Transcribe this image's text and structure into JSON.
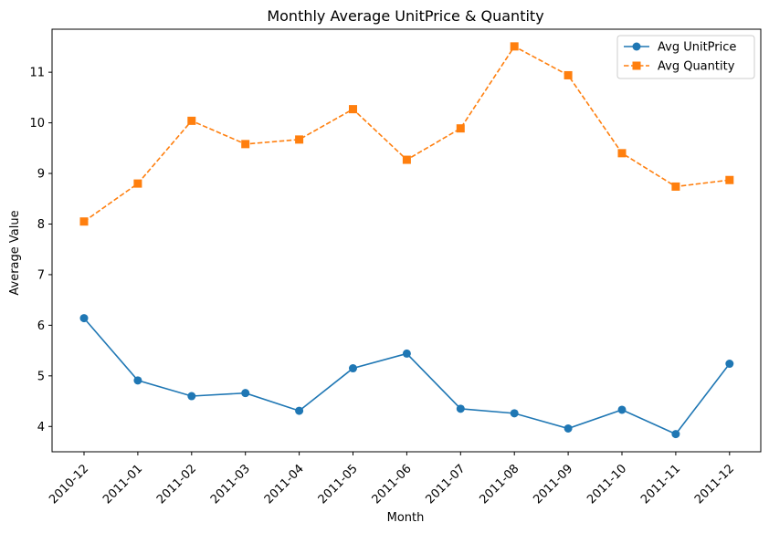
{
  "chart_data": {
    "type": "line",
    "title": "Monthly Average UnitPrice & Quantity",
    "xlabel": "Month",
    "ylabel": "Average Value",
    "categories": [
      "2010-12",
      "2011-01",
      "2011-02",
      "2011-03",
      "2011-04",
      "2011-05",
      "2011-06",
      "2011-07",
      "2011-08",
      "2011-09",
      "2011-10",
      "2011-11",
      "2011-12"
    ],
    "ylim": [
      3.5,
      11.85
    ],
    "yticks": [
      4,
      5,
      6,
      7,
      8,
      9,
      10,
      11
    ],
    "grid": false,
    "legend_position": "top-right",
    "series": [
      {
        "name": "Avg UnitPrice",
        "color": "#1f77b4",
        "marker": "circle",
        "linestyle": "solid",
        "values": [
          6.14,
          4.91,
          4.6,
          4.66,
          4.31,
          5.15,
          5.44,
          4.35,
          4.26,
          3.96,
          4.33,
          3.85,
          5.24
        ]
      },
      {
        "name": "Avg Quantity",
        "color": "#ff7f0e",
        "marker": "square",
        "linestyle": "dashed",
        "values": [
          8.05,
          8.8,
          10.04,
          9.58,
          9.67,
          10.27,
          9.27,
          9.89,
          11.51,
          10.94,
          9.4,
          8.74,
          8.87
        ]
      }
    ]
  }
}
